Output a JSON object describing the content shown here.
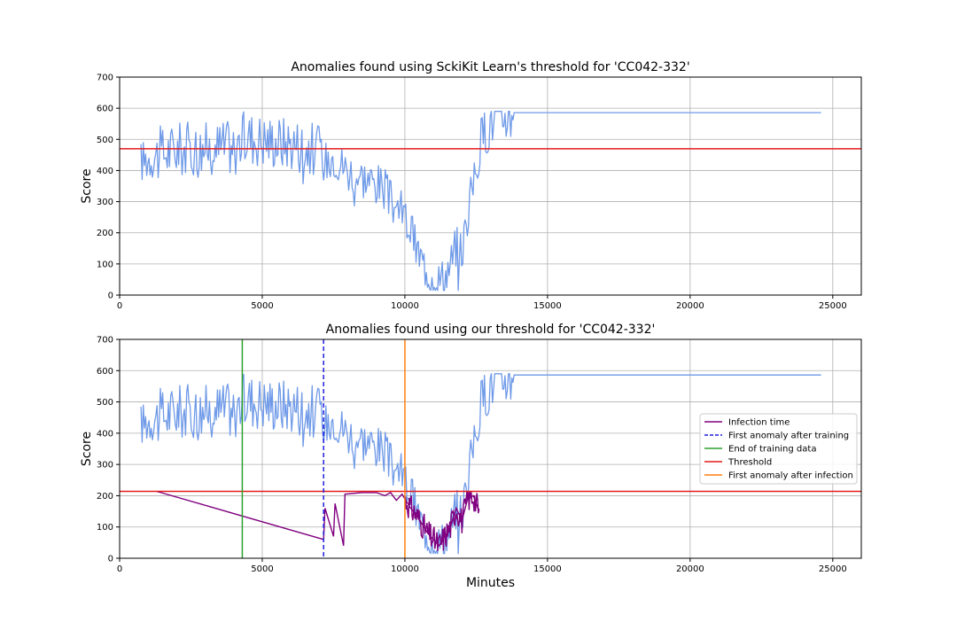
{
  "chart_data": [
    {
      "type": "line",
      "title": "Anomalies found using SckiKit Learn's threshold for 'CC042-332'",
      "xlabel": "",
      "ylabel": "Score",
      "xlim": [
        0,
        26000
      ],
      "ylim": [
        0,
        700
      ],
      "xticks": [
        0,
        5000,
        10000,
        15000,
        20000,
        25000
      ],
      "yticks": [
        0,
        100,
        200,
        300,
        400,
        500,
        600,
        700
      ],
      "grid": true,
      "colors": {
        "score": "#6f9ae8",
        "threshold": "#e41a1c"
      },
      "series": [
        {
          "role": "score",
          "x": [
            750,
            1300,
            2000,
            3000,
            4000,
            4500,
            5000,
            6000,
            6500,
            7000,
            7200,
            7500,
            7800,
            8000,
            8500,
            9000,
            9300,
            9500,
            9800,
            10000,
            10200,
            10400,
            10600,
            10800,
            11000,
            11200,
            11400,
            11600,
            11800,
            12000,
            12200,
            12400,
            12600,
            12800,
            13000,
            13200,
            13500,
            13800,
            14000,
            15000,
            20000,
            24600
          ],
          "y": [
            430,
            450,
            470,
            470,
            480,
            510,
            500,
            490,
            480,
            460,
            430,
            450,
            420,
            400,
            380,
            360,
            340,
            300,
            280,
            250,
            210,
            150,
            110,
            80,
            60,
            50,
            60,
            100,
            160,
            140,
            260,
            360,
            460,
            530,
            560,
            570,
            580,
            586,
            586,
            586,
            586,
            586
          ]
        },
        {
          "role": "threshold",
          "y": 470
        }
      ]
    },
    {
      "type": "line",
      "title": "Anomalies found using our threshold for 'CC042-332'",
      "xlabel": "Minutes",
      "ylabel": "Score",
      "xlim": [
        0,
        26000
      ],
      "ylim": [
        0,
        700
      ],
      "xticks": [
        0,
        5000,
        10000,
        15000,
        20000,
        25000
      ],
      "yticks": [
        0,
        100,
        200,
        300,
        400,
        500,
        600,
        700
      ],
      "grid": true,
      "legend_position": "center-right",
      "colors": {
        "score": "#6f9ae8",
        "infection": "#800080",
        "first_anomaly_training": "#1f1fe0",
        "end_training": "#2ca02c",
        "threshold": "#e41a1c",
        "first_anomaly_infection": "#ff7f0e"
      },
      "score_series": {
        "x": [
          750,
          1300,
          2000,
          3000,
          4000,
          4500,
          5000,
          6000,
          6500,
          7000,
          7200,
          7500,
          7800,
          8000,
          8500,
          9000,
          9300,
          9500,
          9800,
          10000,
          10200,
          10400,
          10600,
          10800,
          11000,
          11200,
          11400,
          11600,
          11800,
          12000,
          12200,
          12400,
          12600,
          12800,
          13000,
          13200,
          13500,
          13800,
          14000,
          15000,
          20000,
          24600
        ],
        "y": [
          430,
          450,
          470,
          470,
          480,
          510,
          500,
          490,
          480,
          460,
          430,
          450,
          420,
          400,
          380,
          360,
          340,
          300,
          280,
          250,
          210,
          150,
          110,
          80,
          60,
          50,
          60,
          100,
          160,
          140,
          260,
          360,
          460,
          530,
          560,
          570,
          580,
          586,
          586,
          586,
          586,
          586
        ]
      },
      "infection_series": {
        "x": [
          1300,
          7150,
          7200,
          7500,
          7550,
          7850,
          7900,
          8500,
          9000,
          9300,
          9500,
          9700,
          9900,
          10000,
          10200,
          10400,
          10600,
          10800,
          11000,
          11200,
          11400,
          11600,
          11800,
          12000,
          12200,
          12400,
          12600
        ],
        "y": [
          214,
          60,
          160,
          70,
          175,
          40,
          205,
          210,
          210,
          200,
          210,
          185,
          205,
          190,
          160,
          140,
          110,
          80,
          60,
          40,
          70,
          100,
          160,
          120,
          190,
          200,
          150
        ]
      },
      "threshold": 214,
      "vlines": {
        "end_training": 4300,
        "first_anomaly_training": 7150,
        "first_anomaly_infection": 10000
      },
      "legend": [
        {
          "label": "Infection time",
          "key": "infection",
          "dashed": false
        },
        {
          "label": "First anomaly after training",
          "key": "first_anomaly_training",
          "dashed": true
        },
        {
          "label": "End of training data",
          "key": "end_training",
          "dashed": false
        },
        {
          "label": "Threshold",
          "key": "threshold",
          "dashed": false
        },
        {
          "label": "First anomaly after infection",
          "key": "first_anomaly_infection",
          "dashed": false
        }
      ]
    }
  ]
}
